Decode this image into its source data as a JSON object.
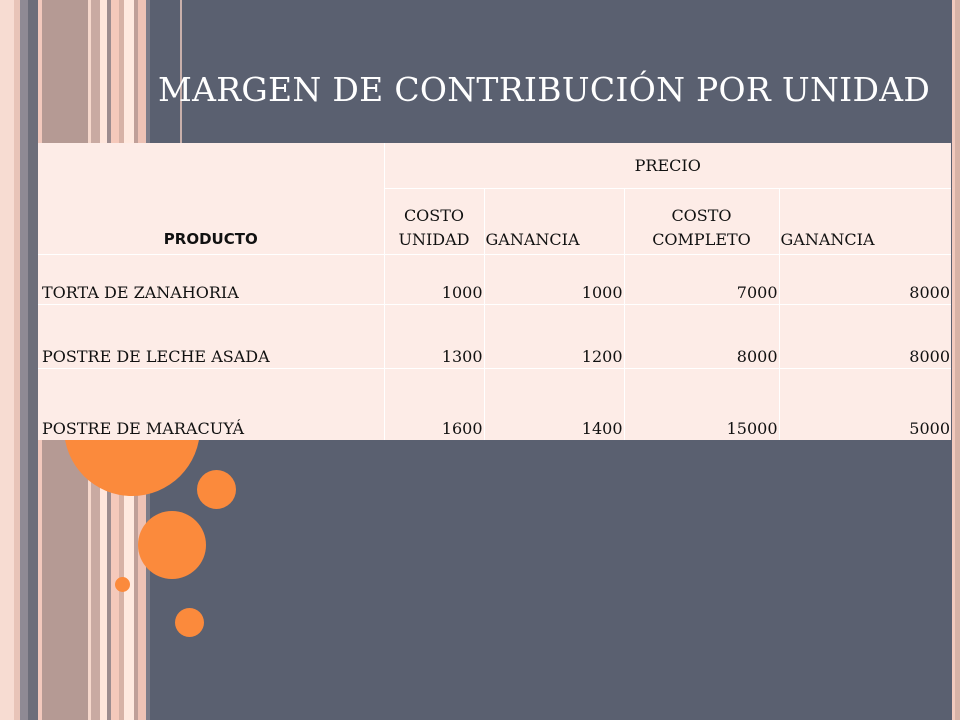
{
  "slide": {
    "title": "MARGEN DE CONTRIBUCIÓN POR UNIDAD",
    "colors": {
      "background": "#5a6070",
      "accent": "#fb8a3c",
      "table_fill": "#fdece7"
    }
  },
  "table": {
    "product_header": "PRODUCTO",
    "price_header": "PRECIO",
    "sub_headers": [
      "COSTO UNIDAD",
      "GANANCIA",
      "COSTO COMPLETO",
      "GANANCIA"
    ],
    "rows": [
      {
        "name": "TORTA DE ZANAHORIA",
        "values": [
          "1000",
          "1000",
          "7000",
          "8000"
        ]
      },
      {
        "name": "POSTRE DE LECHE ASADA",
        "values": [
          "1300",
          "1200",
          "8000",
          "8000"
        ]
      },
      {
        "name": "POSTRE DE MARACUYÁ",
        "values": [
          "1600",
          "1400",
          "15000",
          "5000"
        ]
      }
    ]
  }
}
